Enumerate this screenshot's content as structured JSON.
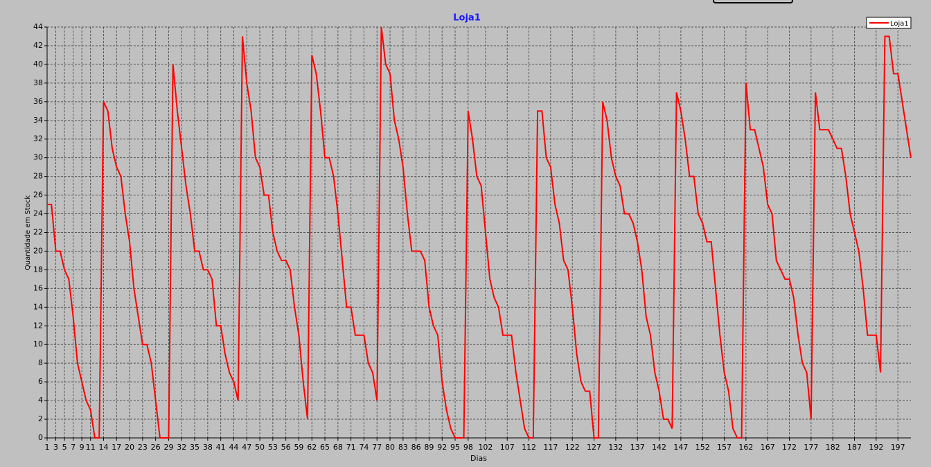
{
  "chart_data": {
    "type": "line",
    "title": "Loja1",
    "x_label": "Dias",
    "y_label": "Quantidade em Stock",
    "x": [
      1,
      2,
      3,
      4,
      5,
      6,
      7,
      8,
      9,
      10,
      11,
      12,
      13,
      14,
      15,
      16,
      17,
      18,
      19,
      20,
      21,
      22,
      23,
      24,
      25,
      26,
      27,
      28,
      29,
      30,
      31,
      32,
      33,
      34,
      35,
      36,
      37,
      38,
      39,
      40,
      41,
      42,
      43,
      44,
      45,
      46,
      47,
      48,
      49,
      50,
      51,
      52,
      53,
      54,
      55,
      56,
      57,
      58,
      59,
      60,
      61,
      62,
      63,
      64,
      65,
      66,
      67,
      68,
      69,
      70,
      71,
      72,
      73,
      74,
      75,
      76,
      77,
      78,
      79,
      80,
      81,
      82,
      83,
      84,
      85,
      86,
      87,
      88,
      89,
      90,
      91,
      92,
      93,
      94,
      95,
      96,
      97,
      98,
      99,
      100,
      101,
      102,
      103,
      104,
      105,
      106,
      107,
      108,
      109,
      110,
      111,
      112,
      113,
      114,
      115,
      116,
      117,
      118,
      119,
      120,
      121,
      122,
      123,
      124,
      125,
      126,
      127,
      128,
      129,
      130,
      131,
      132,
      133,
      134,
      135,
      136,
      137,
      138,
      139,
      140,
      141,
      142,
      143,
      144,
      145,
      146,
      147,
      148,
      149,
      150,
      151,
      152,
      153,
      154,
      155,
      156,
      157,
      158,
      159,
      160,
      161,
      162,
      163,
      164,
      165,
      166,
      167,
      168,
      169,
      170,
      171,
      172,
      173,
      174,
      175,
      176,
      177,
      178,
      179,
      180,
      181,
      182,
      183,
      184,
      185,
      186,
      187,
      188,
      189,
      190,
      191,
      192,
      193,
      194,
      195,
      196,
      197,
      198,
      199,
      200
    ],
    "series": [
      {
        "name": "Loja1",
        "color": "#ff0000",
        "values": [
          25,
          25,
          20,
          20,
          18,
          17,
          13,
          8,
          6,
          4,
          3,
          0,
          0,
          36,
          35,
          31,
          29,
          28,
          24,
          21,
          16,
          13,
          10,
          10,
          8,
          4,
          0,
          0,
          0,
          40,
          35,
          31,
          27,
          24,
          20,
          20,
          18,
          18,
          17,
          12,
          12,
          9,
          7,
          6,
          4,
          43,
          38,
          35,
          30,
          29,
          26,
          26,
          22,
          20,
          19,
          19,
          18,
          14,
          11,
          6,
          2,
          41,
          39,
          35,
          30,
          30,
          28,
          24,
          19,
          14,
          14,
          11,
          11,
          11,
          8,
          7,
          4,
          44,
          40,
          39,
          34,
          32,
          29,
          24,
          20,
          20,
          20,
          19,
          14,
          12,
          11,
          6,
          3,
          1,
          0,
          0,
          0,
          35,
          32,
          28,
          27,
          22,
          17,
          15,
          14,
          11,
          11,
          11,
          7,
          4,
          1,
          0,
          0,
          35,
          35,
          30,
          29,
          25,
          23,
          19,
          18,
          14,
          9,
          6,
          5,
          5,
          0,
          0,
          36,
          34,
          30,
          28,
          27,
          24,
          24,
          23,
          21,
          18,
          13,
          11,
          7,
          5,
          2,
          2,
          1,
          37,
          35,
          32,
          28,
          28,
          24,
          23,
          21,
          21,
          16,
          11,
          7,
          5,
          1,
          0,
          0,
          38,
          33,
          33,
          31,
          29,
          25,
          24,
          19,
          18,
          17,
          17,
          15,
          11,
          8,
          7,
          2,
          37,
          33,
          33,
          33,
          32,
          31,
          31,
          28,
          24,
          22,
          20,
          16,
          11,
          11,
          11,
          7,
          43,
          43,
          39,
          39,
          36,
          33,
          30
        ]
      }
    ],
    "xlim": [
      1,
      200
    ],
    "ylim": [
      0,
      44
    ],
    "xticks": [
      1,
      3,
      5,
      7,
      9,
      11,
      14,
      17,
      20,
      23,
      26,
      29,
      32,
      35,
      38,
      41,
      44,
      47,
      50,
      53,
      56,
      59,
      62,
      65,
      68,
      71,
      74,
      77,
      80,
      83,
      86,
      89,
      92,
      95,
      98,
      102,
      107,
      112,
      117,
      122,
      127,
      132,
      137,
      142,
      147,
      152,
      157,
      162,
      167,
      172,
      177,
      182,
      187,
      192,
      197
    ],
    "yticks": [
      0,
      2,
      4,
      6,
      8,
      10,
      12,
      14,
      16,
      18,
      20,
      22,
      24,
      26,
      28,
      30,
      32,
      34,
      36,
      38,
      40,
      42,
      44
    ],
    "grid": true,
    "legend": "top-right"
  }
}
